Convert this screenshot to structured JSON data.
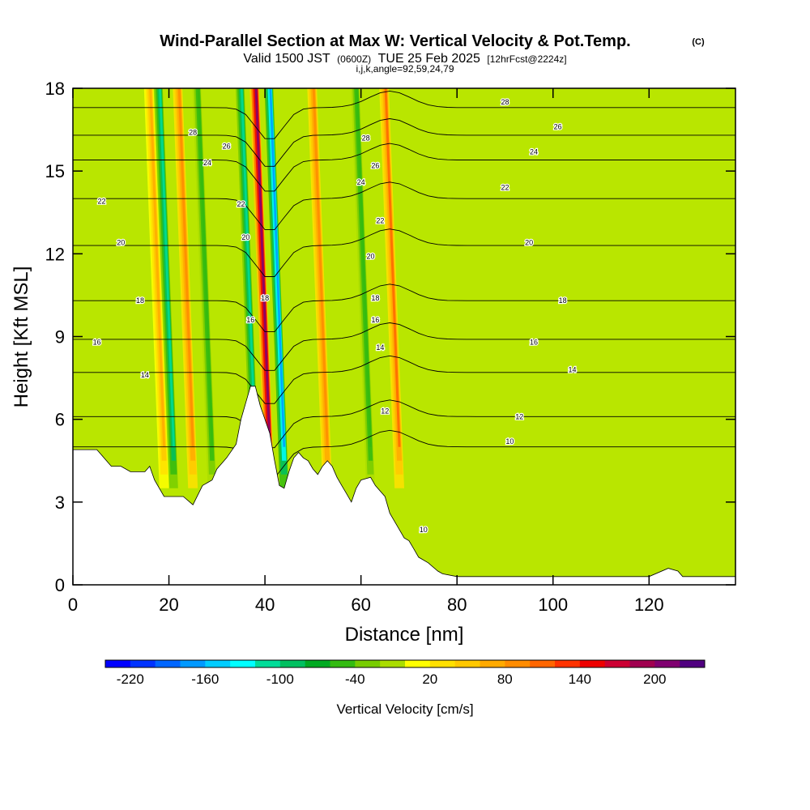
{
  "chart_data": {
    "type": "heatmap",
    "title": "Wind-Parallel Section at Max W: Vertical Velocity & Pot.Temp.",
    "title_mark": "(C)",
    "subtitle": {
      "prefix": "Valid 1500 JST",
      "utc": "(0600Z)",
      "date": "TUE 25 Feb 2025",
      "fcst": "[12hrFcst@2224z]"
    },
    "ijk_line": "i,j,k,angle=92,59,24,79",
    "xlabel": "Distance [nm]",
    "ylabel": "Height [Kft MSL]",
    "xlim": [
      0,
      138
    ],
    "ylim": [
      0,
      18
    ],
    "x_ticks": [
      "0",
      "20",
      "40",
      "60",
      "80",
      "100",
      "120"
    ],
    "y_ticks": [
      "0",
      "3",
      "6",
      "9",
      "12",
      "15",
      "18"
    ],
    "colorbar": {
      "label": "Vertical Velocity [cm/s]",
      "tick_labels": [
        "-220",
        "-160",
        "-100",
        "-40",
        "20",
        "80",
        "140",
        "200"
      ],
      "colors": [
        "#0000ff",
        "#0033ff",
        "#0066ff",
        "#0099ff",
        "#00ccff",
        "#00ffff",
        "#00dd99",
        "#00c060",
        "#00aa22",
        "#33bb11",
        "#77cc00",
        "#aadd00",
        "#ffff00",
        "#ffe000",
        "#ffc800",
        "#ffaa00",
        "#ff8c00",
        "#ff6600",
        "#ff3300",
        "#ee0000",
        "#cc0033",
        "#a00050",
        "#800070",
        "#500080"
      ]
    },
    "updrafts": [
      {
        "x": 41,
        "peak_cm_s": 200
      },
      {
        "x": 25,
        "peak_cm_s": 80
      },
      {
        "x": 68,
        "peak_cm_s": 100
      },
      {
        "x": 53,
        "peak_cm_s": 80
      },
      {
        "x": 19,
        "peak_cm_s": 60
      }
    ],
    "downdrafts": [
      {
        "x": 38,
        "peak_cm_s": -120
      },
      {
        "x": 44,
        "peak_cm_s": -180
      },
      {
        "x": 21,
        "peak_cm_s": -110
      },
      {
        "x": 62,
        "peak_cm_s": -60
      },
      {
        "x": 29,
        "peak_cm_s": -60
      }
    ],
    "contour_labels": [
      {
        "text": "28",
        "x": 25,
        "y": 16.4
      },
      {
        "text": "26",
        "x": 32,
        "y": 15.9
      },
      {
        "text": "24",
        "x": 28,
        "y": 15.3
      },
      {
        "text": "22",
        "x": 6,
        "y": 13.9
      },
      {
        "text": "22",
        "x": 35,
        "y": 13.8
      },
      {
        "text": "20",
        "x": 10,
        "y": 12.4
      },
      {
        "text": "20",
        "x": 36,
        "y": 12.6
      },
      {
        "text": "18",
        "x": 14,
        "y": 10.3
      },
      {
        "text": "18",
        "x": 40,
        "y": 10.4
      },
      {
        "text": "16",
        "x": 5,
        "y": 8.8
      },
      {
        "text": "16",
        "x": 37,
        "y": 9.6
      },
      {
        "text": "14",
        "x": 15,
        "y": 7.6
      },
      {
        "text": "28",
        "x": 61,
        "y": 16.2
      },
      {
        "text": "26",
        "x": 63,
        "y": 15.2
      },
      {
        "text": "24",
        "x": 60,
        "y": 14.6
      },
      {
        "text": "22",
        "x": 64,
        "y": 13.2
      },
      {
        "text": "20",
        "x": 62,
        "y": 11.9
      },
      {
        "text": "18",
        "x": 63,
        "y": 10.4
      },
      {
        "text": "16",
        "x": 63,
        "y": 9.6
      },
      {
        "text": "14",
        "x": 64,
        "y": 8.6
      },
      {
        "text": "12",
        "x": 65,
        "y": 6.3
      },
      {
        "text": "28",
        "x": 90,
        "y": 17.5
      },
      {
        "text": "26",
        "x": 101,
        "y": 16.6
      },
      {
        "text": "24",
        "x": 96,
        "y": 15.7
      },
      {
        "text": "22",
        "x": 90,
        "y": 14.4
      },
      {
        "text": "20",
        "x": 95,
        "y": 12.4
      },
      {
        "text": "18",
        "x": 102,
        "y": 10.3
      },
      {
        "text": "16",
        "x": 96,
        "y": 8.8
      },
      {
        "text": "14",
        "x": 104,
        "y": 7.8
      },
      {
        "text": "12",
        "x": 93,
        "y": 6.1
      },
      {
        "text": "10",
        "x": 91,
        "y": 5.2
      },
      {
        "text": "10",
        "x": 73,
        "y": 2.0
      }
    ],
    "terrain": [
      [
        0,
        4.9
      ],
      [
        5,
        4.9
      ],
      [
        8,
        4.3
      ],
      [
        10,
        4.3
      ],
      [
        12,
        4.1
      ],
      [
        15,
        4.1
      ],
      [
        16,
        4.3
      ],
      [
        17,
        3.8
      ],
      [
        19,
        3.2
      ],
      [
        23,
        3.2
      ],
      [
        25,
        2.9
      ],
      [
        27,
        3.6
      ],
      [
        29,
        3.8
      ],
      [
        30,
        4.2
      ],
      [
        32,
        4.6
      ],
      [
        34,
        5.1
      ],
      [
        35,
        6.0
      ],
      [
        36,
        6.6
      ],
      [
        37,
        7.2
      ],
      [
        38,
        7.2
      ],
      [
        39,
        6.5
      ],
      [
        40,
        6.0
      ],
      [
        41,
        5.5
      ],
      [
        42,
        4.5
      ],
      [
        43,
        3.6
      ],
      [
        44,
        3.5
      ],
      [
        45,
        4.1
      ],
      [
        46,
        4.6
      ],
      [
        47,
        4.8
      ],
      [
        48,
        4.6
      ],
      [
        49,
        4.5
      ],
      [
        50,
        4.2
      ],
      [
        51,
        4.0
      ],
      [
        52,
        4.3
      ],
      [
        53,
        4.5
      ],
      [
        54,
        4.3
      ],
      [
        55,
        3.9
      ],
      [
        56,
        3.6
      ],
      [
        57,
        3.3
      ],
      [
        58,
        3.0
      ],
      [
        59,
        3.5
      ],
      [
        60,
        3.8
      ],
      [
        62,
        3.9
      ],
      [
        63,
        3.6
      ],
      [
        65,
        3.2
      ],
      [
        66,
        2.6
      ],
      [
        68,
        2.0
      ],
      [
        69,
        1.7
      ],
      [
        70,
        1.6
      ],
      [
        71,
        1.3
      ],
      [
        72,
        1.0
      ],
      [
        74,
        0.8
      ],
      [
        76,
        0.5
      ],
      [
        77,
        0.4
      ],
      [
        80,
        0.3
      ],
      [
        120,
        0.3
      ],
      [
        124,
        0.6
      ],
      [
        126,
        0.5
      ],
      [
        127,
        0.3
      ],
      [
        138,
        0.3
      ]
    ]
  }
}
